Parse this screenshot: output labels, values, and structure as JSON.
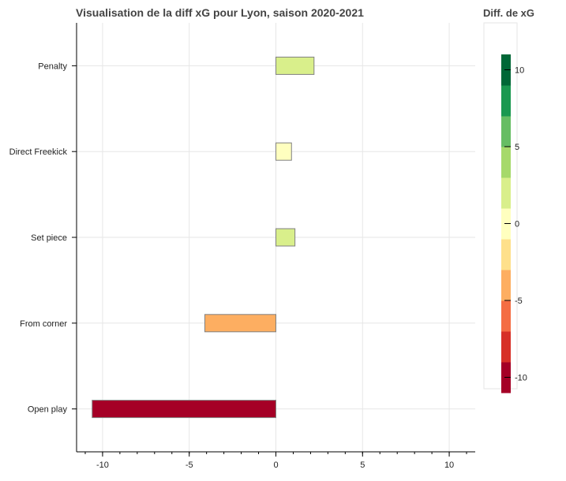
{
  "chart_data": {
    "type": "bar",
    "orientation": "horizontal",
    "title": "Visualisation de la diff xG pour Lyon, saison 2020-2021",
    "xlabel": "",
    "ylabel": "",
    "xlim": [
      -11.5,
      11.5
    ],
    "x_ticks": [
      -10,
      -5,
      0,
      5,
      10
    ],
    "x_tick_labels": [
      "-10",
      "-5",
      "0",
      "5",
      "10"
    ],
    "categories": [
      "Penalty",
      "Direct Freekick",
      "Set piece",
      "From corner",
      "Open play"
    ],
    "values": [
      2.2,
      0.9,
      1.1,
      -4.1,
      -10.6
    ],
    "grid": true,
    "colorbar": {
      "title": "Diff. de xG",
      "range": [
        -11,
        11
      ],
      "ticks": [
        10,
        5,
        0,
        -5,
        -10
      ],
      "tick_labels": [
        "10",
        "5",
        "0",
        "-5",
        "-10"
      ],
      "palette": [
        "#a50026",
        "#d73027",
        "#f46d43",
        "#fdae61",
        "#fee08b",
        "#ffffbf",
        "#d9ef8b",
        "#a6d96a",
        "#66bd63",
        "#1a9850",
        "#006837"
      ]
    }
  }
}
